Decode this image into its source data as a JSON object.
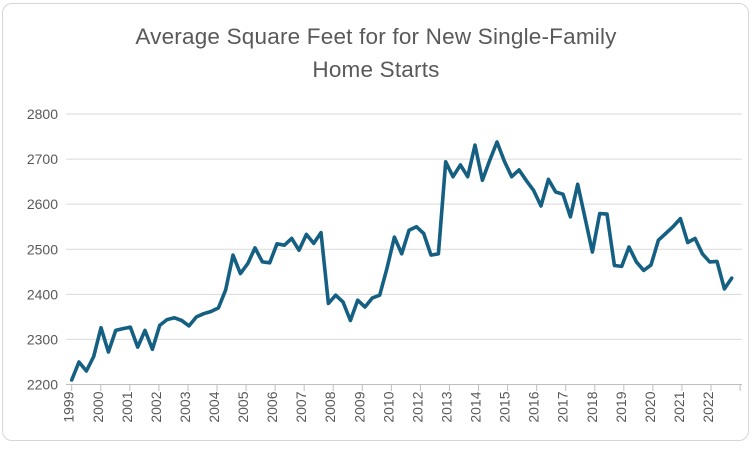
{
  "title": {
    "text": "Average Square Feet for for New Single-Family Home Starts",
    "line1": "Average Square Feet for for New Single-Family",
    "line2": "Home Starts",
    "color": "#595959"
  },
  "chart_data": {
    "type": "line",
    "title": "Average Square Feet for for New Single-Family Home Starts",
    "xlabel": "",
    "ylabel": "",
    "ylim": [
      2200,
      2800
    ],
    "y_ticks": [
      2200,
      2300,
      2400,
      2500,
      2600,
      2700,
      2800
    ],
    "x_tick_labels": [
      "1999",
      "2000",
      "2001",
      "2002",
      "2003",
      "2004",
      "2005",
      "2006",
      "2007",
      "2008",
      "2009",
      "2010",
      "2012",
      "2013",
      "2014",
      "2015",
      "2016",
      "2017",
      "2018",
      "2019",
      "2020",
      "2021",
      "2022"
    ],
    "grid": "horizontal",
    "legend_position": "none",
    "line_color": "#156082",
    "axis_label_color": "#595959",
    "gridline_color": "#d9d9d9",
    "axis_line_color": "#bfbfbf",
    "series": [
      {
        "name": "Average square feet",
        "x": [
          "1999Q1",
          "1999Q2",
          "1999Q3",
          "1999Q4",
          "2000Q1",
          "2000Q2",
          "2000Q3",
          "2000Q4",
          "2001Q1",
          "2001Q2",
          "2001Q3",
          "2001Q4",
          "2002Q1",
          "2002Q2",
          "2002Q3",
          "2002Q4",
          "2003Q1",
          "2003Q2",
          "2003Q3",
          "2003Q4",
          "2004Q1",
          "2004Q2",
          "2004Q3",
          "2004Q4",
          "2005Q1",
          "2005Q2",
          "2005Q3",
          "2005Q4",
          "2006Q1",
          "2006Q2",
          "2006Q3",
          "2006Q4",
          "2007Q1",
          "2007Q2",
          "2007Q3",
          "2007Q4",
          "2008Q1",
          "2008Q2",
          "2008Q3",
          "2008Q4",
          "2009Q1",
          "2009Q2",
          "2009Q3",
          "2009Q4",
          "2010Q1",
          "2010Q2",
          "2010Q3",
          "2010Q4",
          "2012Q1",
          "2012Q2",
          "2012Q3",
          "2012Q4",
          "2013Q1",
          "2013Q2",
          "2013Q3",
          "2013Q4",
          "2014Q1",
          "2014Q2",
          "2014Q3",
          "2014Q4",
          "2015Q1",
          "2015Q2",
          "2015Q3",
          "2015Q4",
          "2016Q1",
          "2016Q2",
          "2016Q3",
          "2016Q4",
          "2017Q1",
          "2017Q2",
          "2017Q3",
          "2017Q4",
          "2018Q1",
          "2018Q2",
          "2018Q3",
          "2018Q4",
          "2019Q1",
          "2019Q2",
          "2019Q3",
          "2019Q4",
          "2020Q1",
          "2020Q2",
          "2020Q3",
          "2020Q4",
          "2021Q1",
          "2021Q2",
          "2021Q3",
          "2021Q4",
          "2022Q1",
          "2022Q2",
          "2022Q3"
        ],
        "values": [
          2210,
          2250,
          2230,
          2262,
          2326,
          2272,
          2320,
          2324,
          2327,
          2283,
          2320,
          2278,
          2331,
          2344,
          2348,
          2342,
          2330,
          2350,
          2357,
          2362,
          2370,
          2410,
          2487,
          2446,
          2468,
          2503,
          2472,
          2470,
          2512,
          2509,
          2524,
          2498,
          2533,
          2513,
          2537,
          2380,
          2398,
          2383,
          2342,
          2387,
          2372,
          2392,
          2398,
          2458,
          2527,
          2490,
          2542,
          2550,
          2535,
          2487,
          2490,
          2694,
          2661,
          2687,
          2661,
          2731,
          2653,
          2697,
          2738,
          2695,
          2661,
          2676,
          2652,
          2630,
          2596,
          2655,
          2627,
          2622,
          2572,
          2644,
          2570,
          2494,
          2579,
          2578,
          2464,
          2462,
          2505,
          2472,
          2453,
          2465,
          2520,
          2535,
          2550,
          2568,
          2515,
          2524,
          2490,
          2472,
          2473,
          2412,
          2436
        ]
      }
    ]
  }
}
